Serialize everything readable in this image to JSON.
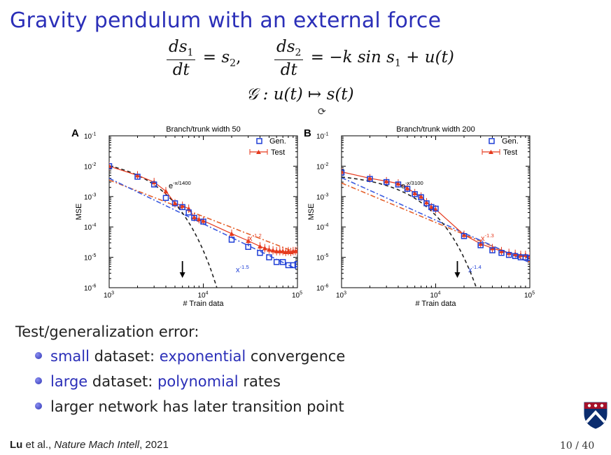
{
  "slide": {
    "title": "Gravity pendulum with an external force",
    "intro": "Test/generalization error:",
    "bullets": [
      {
        "parts": [
          {
            "t": "small",
            "c": "blue"
          },
          {
            "t": " dataset: ",
            "c": ""
          },
          {
            "t": "exponential",
            "c": "blue"
          },
          {
            "t": " convergence",
            "c": ""
          }
        ]
      },
      {
        "parts": [
          {
            "t": "large",
            "c": "blue"
          },
          {
            "t": " dataset: ",
            "c": ""
          },
          {
            "t": "polynomial",
            "c": "blue"
          },
          {
            "t": " rates",
            "c": ""
          }
        ]
      },
      {
        "parts": [
          {
            "t": "larger network has later transition point",
            "c": ""
          }
        ]
      }
    ],
    "citation": {
      "author": "Lu",
      "middle": " et al., ",
      "journal": "Nature Mach Intell",
      "year": ", 2021"
    },
    "page": "10 / 40"
  },
  "equations": {
    "eq1": {
      "num1": "ds",
      "sub1": "1",
      "den": "dt",
      "rhs1": "= s",
      "rhs1sub": "2",
      "sep": ",",
      "num2": "ds",
      "sub2": "2",
      "rhs2a": "= −k sin s",
      "rhs2sub": "1",
      "rhs2b": " + u(t)"
    },
    "eq2": "𝒢 : u(t) ↦ s(t)"
  },
  "colors": {
    "accent": "#2b2fb8",
    "gen": "#1f3fd6",
    "test": "#e53a1e",
    "fit_black": "#222222",
    "fit_blue": "#3b5be0",
    "fit_red": "#e5602a"
  },
  "chart_data": [
    {
      "panel": "A",
      "type": "scatter",
      "title": "Branch/trunk width 50",
      "xlabel": "# Train data",
      "ylabel": "MSE",
      "xscale": "log",
      "yscale": "log",
      "xlim": [
        1000,
        100000
      ],
      "ylim": [
        1e-06,
        0.1
      ],
      "xticks": [
        "10^3",
        "10^4",
        "10^5"
      ],
      "yticks": [
        "10^-6",
        "10^-5",
        "10^-4",
        "10^-3",
        "10^-2",
        "10^-1"
      ],
      "legend": {
        "position": "top-right",
        "entries": [
          "Gen.",
          "Test"
        ]
      },
      "arrow_x": 6000,
      "annotations": {
        "exp": {
          "text": "e",
          "sup": "-x/1400"
        },
        "red": {
          "text": "x",
          "sup": "-1.2"
        },
        "blue": {
          "text": "x",
          "sup": "-1.5"
        }
      },
      "fits": {
        "exp": {
          "a": 0.0205,
          "scale": 1400
        },
        "red": {
          "c": 0.0035,
          "p": 1.2
        },
        "blue": {
          "c": 0.004,
          "p": 1.5
        }
      },
      "series": [
        {
          "name": "Gen.",
          "x": [
            1000,
            2000,
            3000,
            4000,
            5000,
            6000,
            7000,
            8000,
            10000,
            20000,
            30000,
            40000,
            50000,
            60000,
            70000,
            80000,
            90000,
            100000
          ],
          "y": [
            0.01,
            0.0045,
            0.0025,
            0.0009,
            0.0006,
            0.00045,
            0.0003,
            0.0002,
            0.00015,
            3.8e-05,
            2.2e-05,
            1.4e-05,
            1e-05,
            7e-06,
            7e-06,
            5.5e-06,
            5.5e-06,
            6e-06
          ]
        },
        {
          "name": "Test",
          "x": [
            1000,
            2000,
            3000,
            4000,
            5000,
            6000,
            7000,
            8000,
            9000,
            10000,
            20000,
            30000,
            40000,
            45000,
            50000,
            55000,
            60000,
            65000,
            70000,
            75000,
            80000,
            85000,
            90000,
            95000,
            100000
          ],
          "y": [
            0.01,
            0.005,
            0.003,
            0.0015,
            0.0006,
            0.0005,
            0.0004,
            0.00021,
            0.00018,
            0.00016,
            6e-05,
            3.5e-05,
            2.3e-05,
            2e-05,
            1.8e-05,
            1.7e-05,
            1.6e-05,
            1.6e-05,
            1.6e-05,
            1.5e-05,
            1.6e-05,
            1.5e-05,
            1.6e-05,
            1.6e-05,
            1.7e-05
          ]
        }
      ]
    },
    {
      "panel": "B",
      "type": "scatter",
      "title": "Branch/trunk width 200",
      "xlabel": "# Train data",
      "ylabel": "MSE",
      "xscale": "log",
      "yscale": "log",
      "xlim": [
        1000,
        100000
      ],
      "ylim": [
        1e-06,
        0.1
      ],
      "xticks": [
        "10^3",
        "10^4",
        "10^5"
      ],
      "yticks": [
        "10^-6",
        "10^-5",
        "10^-4",
        "10^-3",
        "10^-2",
        "10^-1"
      ],
      "legend": {
        "position": "top-right",
        "entries": [
          "Gen.",
          "Test"
        ]
      },
      "arrow_x": 17000,
      "annotations": {
        "exp": {
          "text": "e",
          "sup": "-x/3100"
        },
        "red": {
          "text": "x",
          "sup": "-1.3"
        },
        "blue": {
          "text": "x",
          "sup": "-1.4"
        }
      },
      "fits": {
        "exp": {
          "a": 0.0088,
          "scale": 3100
        },
        "red": {
          "c": 0.0028,
          "p": 1.3
        },
        "blue": {
          "c": 0.0042,
          "p": 1.4
        }
      },
      "series": [
        {
          "name": "Gen.",
          "x": [
            1000,
            2000,
            3000,
            4000,
            5000,
            6000,
            7000,
            8000,
            9000,
            10000,
            20000,
            30000,
            40000,
            50000,
            60000,
            70000,
            80000,
            90000,
            100000
          ],
          "y": [
            0.0062,
            0.0038,
            0.003,
            0.0025,
            0.0018,
            0.0012,
            0.00095,
            0.0006,
            0.00045,
            0.0004,
            5e-05,
            2.5e-05,
            1.7e-05,
            1.4e-05,
            1.2e-05,
            1.1e-05,
            1e-05,
            1e-05,
            9.5e-06
          ]
        },
        {
          "name": "Test",
          "x": [
            1000,
            2000,
            3000,
            4000,
            5000,
            6000,
            7000,
            8000,
            9000,
            10000,
            20000,
            30000,
            40000,
            50000,
            60000,
            70000,
            80000,
            90000,
            100000
          ],
          "y": [
            0.0065,
            0.004,
            0.0032,
            0.0027,
            0.0019,
            0.0013,
            0.001,
            0.00065,
            0.00045,
            0.00038,
            5.5e-05,
            2.8e-05,
            2e-05,
            1.6e-05,
            1.4e-05,
            1.3e-05,
            1.2e-05,
            1.2e-05,
            1.1e-05
          ]
        }
      ]
    }
  ]
}
